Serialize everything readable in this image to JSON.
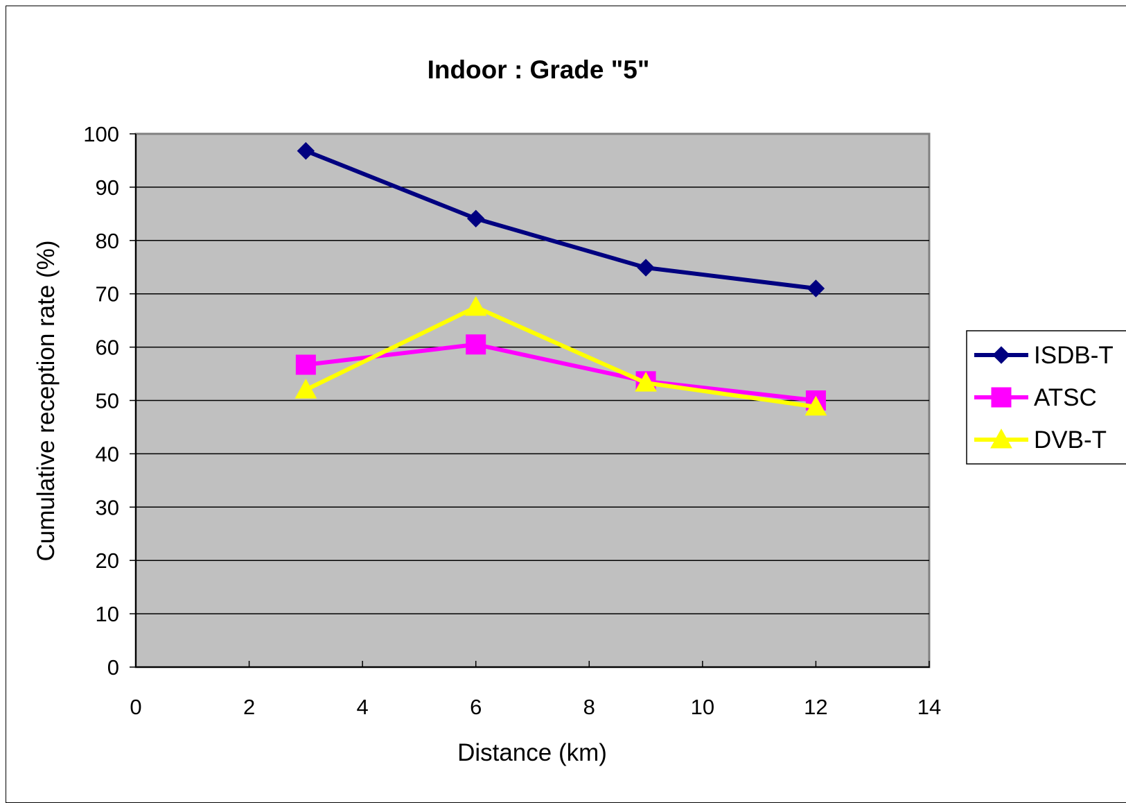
{
  "chart_data": {
    "type": "line",
    "title": "Indoor : Grade \"5\"",
    "xlabel": "Distance (km)",
    "ylabel": "Cumulative reception rate (%)",
    "xlim": [
      0,
      14
    ],
    "ylim": [
      0,
      100
    ],
    "xticks": [
      0,
      2,
      4,
      6,
      8,
      10,
      12,
      14
    ],
    "yticks": [
      0,
      10,
      20,
      30,
      40,
      50,
      60,
      70,
      80,
      90,
      100
    ],
    "grid": "horizontal",
    "legend_position": "right",
    "plot_background": "#c0c0c0",
    "series": [
      {
        "name": "ISDB-T",
        "color": "#000080",
        "marker": "diamond",
        "x": [
          3,
          6,
          9,
          12
        ],
        "values": [
          96.8,
          84.1,
          74.9,
          71.0
        ]
      },
      {
        "name": "ATSC",
        "color": "#ff00ff",
        "marker": "square",
        "x": [
          3,
          6,
          9,
          12
        ],
        "values": [
          56.7,
          60.5,
          53.6,
          50.0
        ]
      },
      {
        "name": "DVB-T",
        "color": "#ffff00",
        "marker": "triangle",
        "x": [
          3,
          6,
          9,
          12
        ],
        "values": [
          52.0,
          67.5,
          53.3,
          48.8
        ]
      }
    ]
  }
}
